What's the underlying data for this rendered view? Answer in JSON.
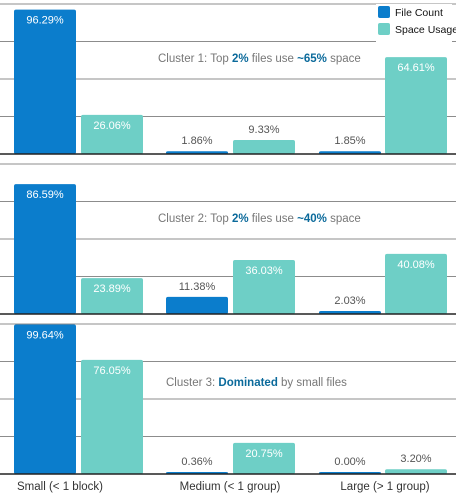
{
  "colors": {
    "file_count": "#0b7dcc",
    "space_usage": "#6ecfc6"
  },
  "chart_data": [
    {
      "type": "bar",
      "annotation": {
        "pre": "Cluster 1: Top ",
        "h1": "2%",
        "mid": " files use ",
        "h2": "~65%",
        "post": " space"
      },
      "categories": [
        "Small (< 1 block)",
        "Medium (< 1 group)",
        "Large (> 1 group)"
      ],
      "series": [
        {
          "name": "File Count",
          "values": [
            96.29,
            1.86,
            1.85
          ],
          "labels": [
            "96.29%",
            "1.86%",
            "1.85%"
          ]
        },
        {
          "name": "Space Usage",
          "values": [
            26.06,
            9.33,
            64.61
          ],
          "labels": [
            "26.06%",
            "9.33%",
            "64.61%"
          ]
        }
      ],
      "ylim": [
        0,
        100
      ]
    },
    {
      "type": "bar",
      "annotation": {
        "pre": "Cluster 2: Top ",
        "h1": "2%",
        "mid": " files use ",
        "h2": "~40%",
        "post": " space"
      },
      "categories": [
        "Small (< 1 block)",
        "Medium (< 1 group)",
        "Large (> 1 group)"
      ],
      "series": [
        {
          "name": "File Count",
          "values": [
            86.59,
            11.38,
            2.03
          ],
          "labels": [
            "86.59%",
            "11.38%",
            "2.03%"
          ]
        },
        {
          "name": "Space Usage",
          "values": [
            23.89,
            36.03,
            40.08
          ],
          "labels": [
            "23.89%",
            "36.03%",
            "40.08%"
          ]
        }
      ],
      "ylim": [
        0,
        100
      ]
    },
    {
      "type": "bar",
      "annotation": {
        "pre": "Cluster 3: ",
        "h1": "Dominated",
        "mid": " by small files",
        "h2": "",
        "post": ""
      },
      "categories": [
        "Small (< 1 block)",
        "Medium (< 1 group)",
        "Large (> 1 group)"
      ],
      "series": [
        {
          "name": "File Count",
          "values": [
            99.64,
            0.36,
            0.0
          ],
          "labels": [
            "99.64%",
            "0.36%",
            "0.00%"
          ]
        },
        {
          "name": "Space Usage",
          "values": [
            76.05,
            20.75,
            3.2
          ],
          "labels": [
            "76.05%",
            "20.75%",
            "3.20%"
          ]
        }
      ],
      "ylim": [
        0,
        100
      ]
    }
  ],
  "legend": [
    "File Count",
    "Space Usage"
  ],
  "x_labels": [
    "Small (< 1 block)",
    "Medium (< 1 group)",
    "Large (> 1 group)"
  ]
}
